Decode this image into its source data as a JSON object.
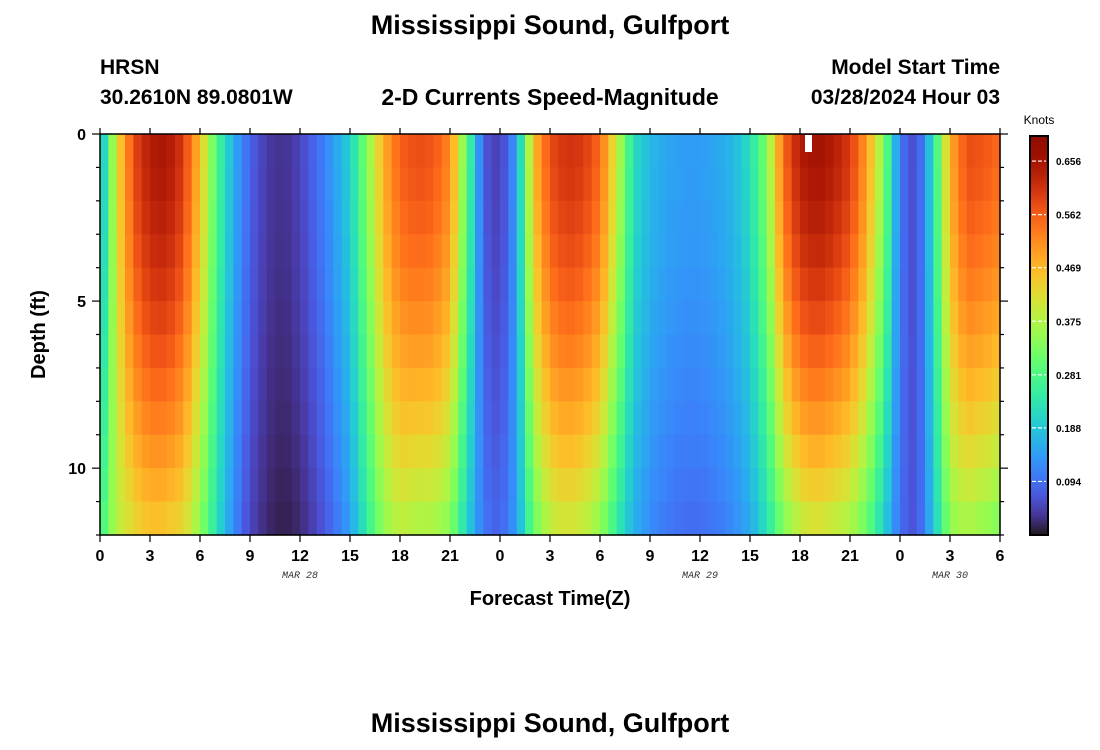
{
  "page": {
    "title": "Mississippi Sound, Gulfport",
    "station_id": "HRSN",
    "coords": "30.2610N  89.0801W",
    "subtitle": "2-D Currents Speed-Magnitude",
    "model_label": "Model Start Time",
    "model_time": "03/28/2024 Hour 03",
    "footer_title": "Mississippi Sound, Gulfport"
  },
  "chart_data": {
    "type": "heatmap",
    "title": "2-D Currents Speed-Magnitude",
    "xlabel": "Forecast Time(Z)",
    "ylabel": "Depth (ft)",
    "colorbar_label": "Knots",
    "x_unit": "forecast hour",
    "xlim": [
      0,
      54
    ],
    "ylim": [
      0,
      12
    ],
    "y_inverted": true,
    "x_ticks": [
      {
        "hour": 0,
        "label": "0"
      },
      {
        "hour": 3,
        "label": "3"
      },
      {
        "hour": 6,
        "label": "6"
      },
      {
        "hour": 9,
        "label": "9"
      },
      {
        "hour": 12,
        "label": "12"
      },
      {
        "hour": 15,
        "label": "15"
      },
      {
        "hour": 18,
        "label": "18"
      },
      {
        "hour": 21,
        "label": "21"
      },
      {
        "hour": 24,
        "label": "0"
      },
      {
        "hour": 27,
        "label": "3"
      },
      {
        "hour": 30,
        "label": "6"
      },
      {
        "hour": 33,
        "label": "9"
      },
      {
        "hour": 36,
        "label": "12"
      },
      {
        "hour": 39,
        "label": "15"
      },
      {
        "hour": 42,
        "label": "18"
      },
      {
        "hour": 45,
        "label": "21"
      },
      {
        "hour": 48,
        "label": "0"
      },
      {
        "hour": 51,
        "label": "3"
      },
      {
        "hour": 54,
        "label": "6"
      }
    ],
    "date_labels": [
      {
        "hour": 12,
        "label": "MAR 28"
      },
      {
        "hour": 36,
        "label": "MAR 29"
      },
      {
        "hour": 51,
        "label": "MAR 30"
      }
    ],
    "y_ticks": [
      {
        "depth": 0,
        "label": "0"
      },
      {
        "depth": 5,
        "label": "5"
      },
      {
        "depth": 10,
        "label": "10"
      }
    ],
    "colorbar_ticks": [
      {
        "value": 0.656,
        "label": "0.656"
      },
      {
        "value": 0.562,
        "label": "0.562"
      },
      {
        "value": 0.469,
        "label": "0.469"
      },
      {
        "value": 0.375,
        "label": "0.375"
      },
      {
        "value": 0.281,
        "label": "0.281"
      },
      {
        "value": 0.188,
        "label": "0.188"
      },
      {
        "value": 0.094,
        "label": "0.094"
      }
    ],
    "value_range": [
      0.0,
      0.7
    ],
    "depth_levels": [
      0.5,
      1.5,
      2.5,
      3.5,
      4.5,
      5.5,
      6.5,
      7.5,
      8.5,
      9.5,
      10.5,
      11.5
    ],
    "profile_hours": [
      0,
      1,
      2,
      3,
      4,
      5,
      6,
      7,
      8,
      9,
      10,
      11,
      12,
      13,
      14,
      15,
      16,
      17,
      18,
      19,
      20,
      21,
      22,
      23,
      24,
      25,
      26,
      27,
      28,
      29,
      30,
      31,
      32,
      33,
      34,
      35,
      36,
      37,
      38,
      39,
      40,
      41,
      42,
      43,
      44,
      45,
      46,
      47,
      48,
      49,
      50,
      51,
      52,
      53,
      54
    ],
    "surface_speed_knots": [
      0.14,
      0.42,
      0.58,
      0.64,
      0.65,
      0.6,
      0.46,
      0.28,
      0.16,
      0.08,
      0.04,
      0.03,
      0.05,
      0.09,
      0.14,
      0.2,
      0.33,
      0.48,
      0.56,
      0.58,
      0.57,
      0.52,
      0.3,
      0.07,
      0.04,
      0.14,
      0.46,
      0.58,
      0.61,
      0.6,
      0.55,
      0.4,
      0.22,
      0.17,
      0.15,
      0.14,
      0.14,
      0.15,
      0.17,
      0.22,
      0.33,
      0.55,
      0.64,
      0.66,
      0.64,
      0.6,
      0.5,
      0.34,
      0.1,
      0.05,
      0.22,
      0.48,
      0.58,
      0.57,
      0.55
    ],
    "bottom_speed_knots": [
      0.26,
      0.38,
      0.42,
      0.45,
      0.44,
      0.42,
      0.34,
      0.22,
      0.12,
      0.05,
      0.02,
      0.01,
      0.02,
      0.05,
      0.09,
      0.14,
      0.24,
      0.34,
      0.38,
      0.36,
      0.36,
      0.33,
      0.2,
      0.1,
      0.08,
      0.14,
      0.3,
      0.38,
      0.4,
      0.38,
      0.34,
      0.24,
      0.16,
      0.12,
      0.1,
      0.09,
      0.09,
      0.1,
      0.12,
      0.15,
      0.22,
      0.32,
      0.38,
      0.4,
      0.38,
      0.36,
      0.3,
      0.2,
      0.09,
      0.06,
      0.18,
      0.34,
      0.36,
      0.34,
      0.32
    ]
  }
}
